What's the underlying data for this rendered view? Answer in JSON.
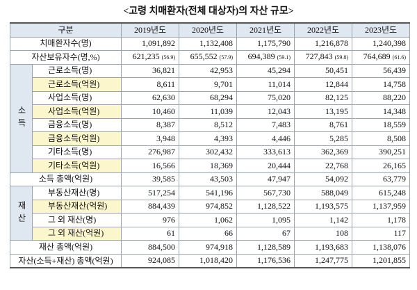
{
  "title": "<고령 치매환자(전체 대상자)의 자산 규모>",
  "table": {
    "header": [
      "구분",
      "2019년도",
      "2020년도",
      "2021년도",
      "2022년도",
      "2023년도"
    ],
    "rows": [
      {
        "label": "치매환자수(명)",
        "values": [
          "1,091,892",
          "1,132,408",
          "1,175,790",
          "1,216,878",
          "1,240,398"
        ]
      },
      {
        "label": "자산보유자수(명,%)",
        "values": [
          {
            "count": "621,235",
            "pct": "(56.9)"
          },
          {
            "count": "655,552",
            "pct": "(57.9)"
          },
          {
            "count": "694,389",
            "pct": "(59.1)"
          },
          {
            "count": "727,843",
            "pct": "(59.8)"
          },
          {
            "count": "764,689",
            "pct": "(61.6)"
          }
        ]
      },
      {
        "group": "소득",
        "rows": [
          {
            "label": "근로소득(명)",
            "values": [
              "36,821",
              "42,953",
              "45,294",
              "50,451",
              "56,439"
            ]
          },
          {
            "label": "근로소득(억원)",
            "values": [
              "8,611",
              "9,701",
              "11,014",
              "12,844",
              "14,758"
            ]
          },
          {
            "label": "사업소득(명)",
            "values": [
              "62,630",
              "68,294",
              "75,020",
              "82,125",
              "88,220"
            ]
          },
          {
            "label": "사업소득(억원)",
            "values": [
              "10,460",
              "11,039",
              "12,043",
              "13,195",
              "14,348"
            ]
          },
          {
            "label": "금융소득(명)",
            "values": [
              "8,387",
              "8,512",
              "7,483",
              "8,761",
              "18,559"
            ]
          },
          {
            "label": "금융소득(억원)",
            "values": [
              "3,948",
              "4,393",
              "4,446",
              "5,285",
              "8,508"
            ]
          },
          {
            "label": "기타소득(명)",
            "values": [
              "276,987",
              "302,432",
              "333,613",
              "362,369",
              "390,251"
            ]
          },
          {
            "label": "기타소득(억원)",
            "values": [
              "16,566",
              "18,369",
              "20,444",
              "22,768",
              "26,165"
            ]
          }
        ]
      },
      {
        "label": "소득 총액(억원)",
        "values": [
          "39,585",
          "43,503",
          "47,947",
          "54,092",
          "63,779"
        ]
      },
      {
        "group": "재산",
        "rows": [
          {
            "label": "부동산재산(명)",
            "values": [
              "517,254",
              "541,196",
              "567,730",
              "588,049",
              "615,248"
            ]
          },
          {
            "label": "부동산재산(억원)",
            "values": [
              "884,439",
              "974,852",
              "1,128,522",
              "1,193,575",
              "1,137,959"
            ]
          },
          {
            "label": "그 외 재산(명)",
            "values": [
              "976",
              "1,062",
              "1,095",
              "1,142",
              "1,178"
            ]
          },
          {
            "label": "그 외 재산(억원)",
            "values": [
              "61",
              "66",
              "67",
              "108",
              "117"
            ]
          }
        ]
      },
      {
        "label": "재산 총액(억원)",
        "values": [
          "884,500",
          "974,918",
          "1,128,589",
          "1,193,683",
          "1,138,076"
        ]
      },
      {
        "label": "자산(소득+재산) 총액(억원)",
        "values": [
          "924,085",
          "1,018,420",
          "1,176,536",
          "1,247,775",
          "1,201,855"
        ]
      }
    ]
  }
}
